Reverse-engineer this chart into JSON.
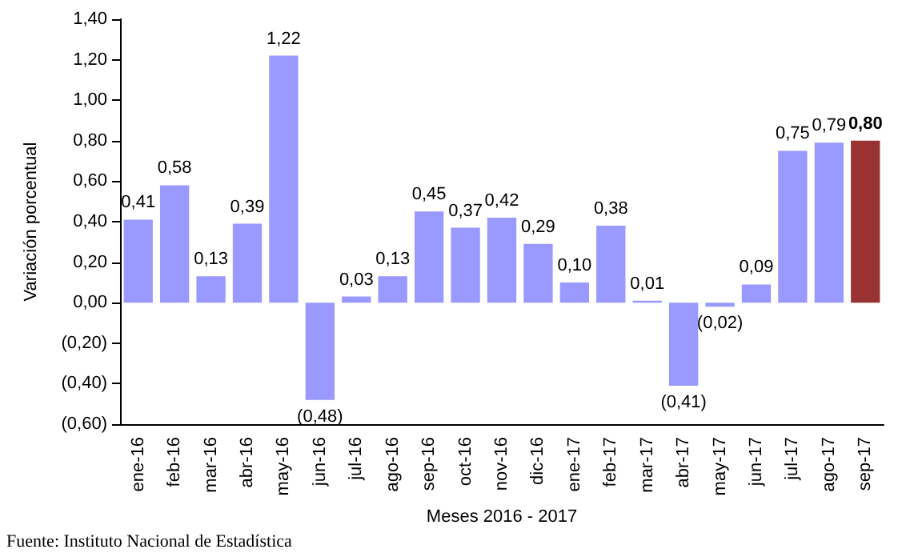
{
  "chart_data": {
    "type": "bar",
    "xlabel": "Meses 2016 - 2017",
    "ylabel": "Variación porcentual",
    "categories": [
      "ene-16",
      "feb-16",
      "mar-16",
      "abr-16",
      "may-16",
      "jun-16",
      "jul-16",
      "ago-16",
      "sep-16",
      "oct-16",
      "nov-16",
      "dic-16",
      "ene-17",
      "feb-17",
      "mar-17",
      "abr-17",
      "may-17",
      "jun-17",
      "jul-17",
      "ago-17",
      "sep-17"
    ],
    "values": [
      0.41,
      0.58,
      0.13,
      0.39,
      1.22,
      -0.48,
      0.03,
      0.13,
      0.45,
      0.37,
      0.42,
      0.29,
      0.1,
      0.38,
      0.01,
      -0.41,
      -0.02,
      0.09,
      0.75,
      0.79,
      0.8
    ],
    "colors": [
      "#9999ff",
      "#9999ff",
      "#9999ff",
      "#9999ff",
      "#9999ff",
      "#9999ff",
      "#9999ff",
      "#9999ff",
      "#9999ff",
      "#9999ff",
      "#9999ff",
      "#9999ff",
      "#9999ff",
      "#9999ff",
      "#9999ff",
      "#9999ff",
      "#9999ff",
      "#9999ff",
      "#9999ff",
      "#9999ff",
      "#993333"
    ],
    "value_labels": [
      "0,41",
      "0,58",
      "0,13",
      "0,39",
      "1,22",
      "(0,48)",
      "0,03",
      "0,13",
      "0,45",
      "0,37",
      "0,42",
      "0,29",
      "0,10",
      "0,38",
      "0,01",
      "(0,41)",
      "(0,02)",
      "0,09",
      "0,75",
      "0,79",
      "0,80"
    ],
    "ylim": [
      -0.6,
      1.4
    ],
    "yticks": [
      {
        "value": -0.6,
        "label": "(0,60)"
      },
      {
        "value": -0.4,
        "label": "(0,40)"
      },
      {
        "value": -0.2,
        "label": "(0,20)"
      },
      {
        "value": 0,
        "label": "0,00"
      },
      {
        "value": 0.2,
        "label": "0,20"
      },
      {
        "value": 0.4,
        "label": "0,40"
      },
      {
        "value": 0.6,
        "label": "0,60"
      },
      {
        "value": 0.8,
        "label": "0,80"
      },
      {
        "value": 1,
        "label": "1,00"
      },
      {
        "value": 1.2,
        "label": "1,20"
      },
      {
        "value": 1.4,
        "label": "1,40"
      }
    ],
    "grid": false,
    "annotations": [
      "Fuente: Instituto Nacional de Estadística"
    ]
  }
}
